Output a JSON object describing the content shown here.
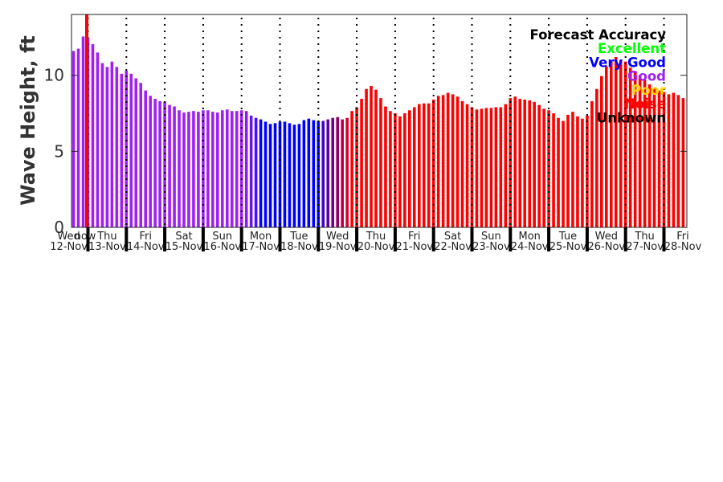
{
  "chart_data": {
    "type": "bar",
    "ylabel": "Wave Height, ft",
    "ylim": [
      0,
      14
    ],
    "yticks": [
      "0",
      "5",
      "10"
    ],
    "ytick_values": [
      0,
      5,
      10
    ],
    "interval_hours": 3,
    "now_label": "now",
    "now_color": "#ff0000",
    "days": [
      {
        "day": "Wed",
        "date": "12-Nov"
      },
      {
        "day": "Thu",
        "date": "13-Nov"
      },
      {
        "day": "Fri",
        "date": "14-Nov"
      },
      {
        "day": "Sat",
        "date": "15-Nov"
      },
      {
        "day": "Sun",
        "date": "16-Nov"
      },
      {
        "day": "Mon",
        "date": "17-Nov"
      },
      {
        "day": "Tue",
        "date": "18-Nov"
      },
      {
        "day": "Wed",
        "date": "19-Nov"
      },
      {
        "day": "Thu",
        "date": "20-Nov"
      },
      {
        "day": "Fri",
        "date": "21-Nov"
      },
      {
        "day": "Sat",
        "date": "22-Nov"
      },
      {
        "day": "Sun",
        "date": "23-Nov"
      },
      {
        "day": "Mon",
        "date": "24-Nov"
      },
      {
        "day": "Tue",
        "date": "25-Nov"
      },
      {
        "day": "Wed",
        "date": "26-Nov"
      },
      {
        "day": "Thu",
        "date": "27-Nov"
      },
      {
        "day": "Fri",
        "date": "28-Nov"
      }
    ],
    "values": [
      11.6,
      11.75,
      12.55,
      12.45,
      12.05,
      11.5,
      10.8,
      10.55,
      10.9,
      10.55,
      10.1,
      10.3,
      10.1,
      9.8,
      9.5,
      9.0,
      8.65,
      8.45,
      8.3,
      8.25,
      8.05,
      7.95,
      7.7,
      7.55,
      7.6,
      7.65,
      7.6,
      7.7,
      7.7,
      7.6,
      7.55,
      7.7,
      7.75,
      7.65,
      7.65,
      7.7,
      7.65,
      7.35,
      7.2,
      7.1,
      6.95,
      6.8,
      6.85,
      6.95,
      6.95,
      6.85,
      6.75,
      6.8,
      7.05,
      7.15,
      7.05,
      7.0,
      7.0,
      7.1,
      7.2,
      7.25,
      7.1,
      7.2,
      7.65,
      7.9,
      8.45,
      9.1,
      9.3,
      9.05,
      8.5,
      7.95,
      7.65,
      7.5,
      7.3,
      7.5,
      7.7,
      7.9,
      8.1,
      8.15,
      8.15,
      8.4,
      8.65,
      8.7,
      8.85,
      8.75,
      8.6,
      8.3,
      8.1,
      7.9,
      7.75,
      7.8,
      7.85,
      7.85,
      7.9,
      7.9,
      8.1,
      8.5,
      8.6,
      8.45,
      8.4,
      8.35,
      8.25,
      8.05,
      7.8,
      7.7,
      7.5,
      7.2,
      7.0,
      7.4,
      7.6,
      7.3,
      7.15,
      7.35,
      8.3,
      9.1,
      9.95,
      10.6,
      10.9,
      11.2,
      11.0,
      10.9,
      10.5,
      10.2,
      10.0,
      9.7,
      9.4,
      9.2,
      9.0,
      8.9,
      8.75,
      8.85,
      8.7,
      8.5
    ],
    "color_stops": [
      [
        0,
        "#a020f0"
      ],
      [
        35,
        "#a020f0"
      ],
      [
        36,
        "#8a1cf2"
      ],
      [
        37,
        "#6a14f6"
      ],
      [
        38,
        "#4a0cfa"
      ],
      [
        39,
        "#0000ff"
      ],
      [
        51,
        "#0000ff"
      ],
      [
        52,
        "#4400c8"
      ],
      [
        53,
        "#5c00a0"
      ],
      [
        54,
        "#700088"
      ],
      [
        55,
        "#8c0068"
      ],
      [
        56,
        "#b80040"
      ],
      [
        57,
        "#d00030"
      ],
      [
        58,
        "#ff0000"
      ],
      [
        127,
        "#ff0000"
      ]
    ],
    "legend": {
      "title": "Forecast Accuracy",
      "placement": "top-right",
      "entries": [
        {
          "label": "Excellent",
          "color": "#00ff00"
        },
        {
          "label": "Very Good",
          "color": "#0000ff"
        },
        {
          "label": "Good",
          "color": "#a020f0"
        },
        {
          "label": "Poor",
          "color": "#ffd700"
        },
        {
          "label": "Noise",
          "color": "#ff0000"
        },
        {
          "label": "Unknown",
          "color": "#000000"
        }
      ]
    }
  }
}
